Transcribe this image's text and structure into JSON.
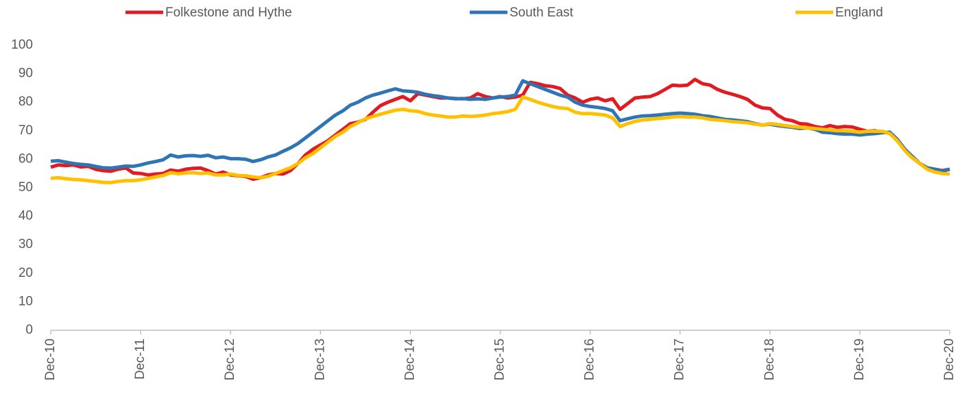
{
  "chart_data": {
    "type": "line",
    "categories": [
      "Dec-10",
      null,
      null,
      null,
      null,
      null,
      null,
      null,
      null,
      null,
      null,
      null,
      "Dec-11",
      null,
      null,
      null,
      null,
      null,
      null,
      null,
      null,
      null,
      null,
      null,
      "Dec-12",
      null,
      null,
      null,
      null,
      null,
      null,
      null,
      null,
      null,
      null,
      null,
      "Dec-13",
      null,
      null,
      null,
      null,
      null,
      null,
      null,
      null,
      null,
      null,
      null,
      "Dec-14",
      null,
      null,
      null,
      null,
      null,
      null,
      null,
      null,
      null,
      null,
      null,
      "Dec-15",
      null,
      null,
      null,
      null,
      null,
      null,
      null,
      null,
      null,
      null,
      null,
      "Dec-16",
      null,
      null,
      null,
      null,
      null,
      null,
      null,
      null,
      null,
      null,
      null,
      "Dec-17",
      null,
      null,
      null,
      null,
      null,
      null,
      null,
      null,
      null,
      null,
      null,
      "Dec-18",
      null,
      null,
      null,
      null,
      null,
      null,
      null,
      null,
      null,
      null,
      null,
      "Dec-19",
      null,
      null,
      null,
      null,
      null,
      null,
      null,
      null,
      null,
      null,
      null,
      "Dec-20"
    ],
    "series": [
      {
        "name": "Folkestone and Hythe",
        "color": "#e01b22",
        "values": [
          57.2,
          58.0,
          57.8,
          58.0,
          57.3,
          57.5,
          56.5,
          56.0,
          55.8,
          56.5,
          57.0,
          55.2,
          55.0,
          54.5,
          54.8,
          55.0,
          56.2,
          55.8,
          56.5,
          56.8,
          56.9,
          56.0,
          54.8,
          55.5,
          54.5,
          54.2,
          54.0,
          53.0,
          53.5,
          54.5,
          55.0,
          54.8,
          56.0,
          58.5,
          61.5,
          63.5,
          65.0,
          66.5,
          68.5,
          70.5,
          72.5,
          73.0,
          74.0,
          76.5,
          78.8,
          80.0,
          81.0,
          82.0,
          80.5,
          83.0,
          82.5,
          82.0,
          81.5,
          81.5,
          81.3,
          81.2,
          81.5,
          83.0,
          82.0,
          81.5,
          82.0,
          81.5,
          81.8,
          82.5,
          87.0,
          86.5,
          85.8,
          85.5,
          84.8,
          82.5,
          81.5,
          80.0,
          81.0,
          81.5,
          80.5,
          81.2,
          77.5,
          79.5,
          81.5,
          81.8,
          82.0,
          83.0,
          84.5,
          86.0,
          85.8,
          86.0,
          88.0,
          86.5,
          86.0,
          84.5,
          83.5,
          82.8,
          82.0,
          81.0,
          79.0,
          78.0,
          77.8,
          75.5,
          74.0,
          73.5,
          72.5,
          72.3,
          71.5,
          71.0,
          71.8,
          71.2,
          71.5,
          71.3,
          70.5,
          69.8,
          70.0,
          69.5,
          69.3,
          66.5,
          63.5,
          60.5,
          58.5,
          57.0,
          56.5,
          56.0,
          56.5
        ]
      },
      {
        "name": "South East",
        "color": "#2e75b6",
        "values": [
          59.3,
          59.5,
          59.0,
          58.5,
          58.2,
          58.0,
          57.5,
          57.0,
          56.9,
          57.2,
          57.6,
          57.5,
          58.0,
          58.7,
          59.2,
          59.8,
          61.5,
          60.8,
          61.2,
          61.3,
          61.0,
          61.4,
          60.5,
          60.8,
          60.2,
          60.2,
          60.0,
          59.2,
          59.8,
          60.8,
          61.5,
          62.8,
          64.0,
          65.5,
          67.5,
          69.5,
          71.5,
          73.5,
          75.5,
          77.0,
          79.0,
          80.0,
          81.5,
          82.5,
          83.2,
          84.0,
          84.7,
          84.0,
          83.8,
          83.5,
          82.8,
          82.3,
          82.0,
          81.5,
          81.2,
          81.3,
          81.0,
          81.2,
          81.0,
          81.5,
          81.8,
          82.0,
          82.5,
          87.5,
          86.5,
          85.5,
          84.5,
          83.5,
          82.5,
          81.8,
          80.0,
          79.0,
          78.5,
          78.2,
          77.8,
          77.0,
          73.5,
          74.2,
          74.8,
          75.2,
          75.3,
          75.5,
          75.8,
          76.0,
          76.2,
          76.0,
          75.8,
          75.3,
          75.0,
          74.5,
          74.0,
          73.8,
          73.5,
          73.2,
          72.5,
          72.0,
          72.3,
          71.8,
          71.5,
          71.2,
          70.8,
          71.0,
          70.5,
          69.5,
          69.3,
          69.0,
          68.8,
          68.8,
          68.5,
          68.8,
          69.0,
          69.3,
          69.5,
          67.0,
          63.5,
          61.0,
          58.5,
          57.0,
          56.5,
          55.8,
          56.5
        ]
      },
      {
        "name": "England",
        "color": "#ffc000",
        "values": [
          53.3,
          53.5,
          53.2,
          52.9,
          52.8,
          52.5,
          52.2,
          51.9,
          51.8,
          52.2,
          52.5,
          52.5,
          52.8,
          53.3,
          53.8,
          54.3,
          55.3,
          54.9,
          55.2,
          55.3,
          55.0,
          55.2,
          54.5,
          54.5,
          54.8,
          54.3,
          54.2,
          53.8,
          53.5,
          54.0,
          55.0,
          56.0,
          57.0,
          58.5,
          60.5,
          62.0,
          64.0,
          66.0,
          68.0,
          69.5,
          71.5,
          72.8,
          74.2,
          75.0,
          75.8,
          76.5,
          77.2,
          77.5,
          77.0,
          76.8,
          76.0,
          75.5,
          75.2,
          74.8,
          74.8,
          75.2,
          75.0,
          75.2,
          75.5,
          76.0,
          76.3,
          76.7,
          77.5,
          81.8,
          81.0,
          80.0,
          79.2,
          78.5,
          78.0,
          77.8,
          76.5,
          76.0,
          76.0,
          75.8,
          75.5,
          74.5,
          71.5,
          72.5,
          73.3,
          73.8,
          74.0,
          74.3,
          74.5,
          74.8,
          75.0,
          74.8,
          74.8,
          74.5,
          74.0,
          73.8,
          73.5,
          73.2,
          73.0,
          72.8,
          72.3,
          72.0,
          72.5,
          72.2,
          71.8,
          71.5,
          71.2,
          71.0,
          70.8,
          70.5,
          70.3,
          70.0,
          70.0,
          69.8,
          69.5,
          69.8,
          69.8,
          69.8,
          69.0,
          66.5,
          63.0,
          60.5,
          58.5,
          56.5,
          55.5,
          55.0,
          54.8
        ]
      }
    ],
    "ylim": [
      0,
      100
    ],
    "yticks": [
      0,
      10,
      20,
      30,
      40,
      50,
      60,
      70,
      80,
      90,
      100
    ],
    "grid": false,
    "legend": "top"
  }
}
